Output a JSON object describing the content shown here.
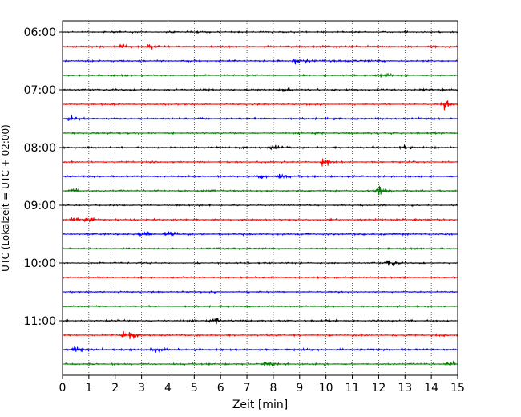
{
  "chart_data": {
    "type": "line",
    "title": "",
    "xlabel": "Zeit  [min]",
    "ylabel": "UTC (Lokalzeit = UTC + 02:00)",
    "xlim": [
      0,
      15
    ],
    "x_ticks": [
      "0",
      "1",
      "2",
      "3",
      "4",
      "5",
      "6",
      "7",
      "8",
      "9",
      "10",
      "11",
      "12",
      "13",
      "14",
      "15"
    ],
    "y_ticks": [
      "06:00",
      "07:00",
      "08:00",
      "09:00",
      "10:00",
      "11:00"
    ],
    "grid": "vertical dotted lines at each minute",
    "trace_interval_minutes": 15,
    "colors": [
      "#000000",
      "#ff0000",
      "#0000ff",
      "#008000"
    ],
    "traces": [
      {
        "start": "06:00",
        "color": "#000000",
        "amplitude": 0.1,
        "events": []
      },
      {
        "start": "06:15",
        "color": "#ff0000",
        "amplitude": 0.13,
        "events": [
          {
            "t": 2.3,
            "amp": 0.35
          },
          {
            "t": 3.3,
            "amp": 0.35
          }
        ]
      },
      {
        "start": "06:30",
        "color": "#0000ff",
        "amplitude": 0.12,
        "events": [
          {
            "t": 8.9,
            "amp": 0.6
          }
        ]
      },
      {
        "start": "06:45",
        "color": "#008000",
        "amplitude": 0.1,
        "events": [
          {
            "t": 12.1,
            "amp": 0.4
          }
        ]
      },
      {
        "start": "07:00",
        "color": "#000000",
        "amplitude": 0.12,
        "events": [
          {
            "t": 8.4,
            "amp": 0.25
          }
        ]
      },
      {
        "start": "07:15",
        "color": "#ff0000",
        "amplitude": 0.1,
        "events": [
          {
            "t": 14.5,
            "amp": 0.7
          }
        ]
      },
      {
        "start": "07:30",
        "color": "#0000ff",
        "amplitude": 0.12,
        "events": [
          {
            "t": 0.3,
            "amp": 0.65
          }
        ]
      },
      {
        "start": "07:45",
        "color": "#008000",
        "amplitude": 0.12,
        "events": []
      },
      {
        "start": "08:00",
        "color": "#000000",
        "amplitude": 0.12,
        "events": [
          {
            "t": 8.0,
            "amp": 0.35
          },
          {
            "t": 13.0,
            "amp": 0.3
          }
        ]
      },
      {
        "start": "08:15",
        "color": "#ff0000",
        "amplitude": 0.1,
        "events": [
          {
            "t": 9.9,
            "amp": 0.6
          }
        ]
      },
      {
        "start": "08:30",
        "color": "#0000ff",
        "amplitude": 0.12,
        "events": [
          {
            "t": 7.5,
            "amp": 0.4
          },
          {
            "t": 8.2,
            "amp": 0.3
          }
        ]
      },
      {
        "start": "08:45",
        "color": "#008000",
        "amplitude": 0.12,
        "events": [
          {
            "t": 0.3,
            "amp": 0.35
          },
          {
            "t": 12.0,
            "amp": 0.7
          }
        ]
      },
      {
        "start": "09:00",
        "color": "#000000",
        "amplitude": 0.1,
        "events": []
      },
      {
        "start": "09:15",
        "color": "#ff0000",
        "amplitude": 0.12,
        "events": [
          {
            "t": 0.4,
            "amp": 0.55
          },
          {
            "t": 0.9,
            "amp": 0.4
          }
        ]
      },
      {
        "start": "09:30",
        "color": "#0000ff",
        "amplitude": 0.12,
        "events": [
          {
            "t": 3.0,
            "amp": 0.4
          },
          {
            "t": 4.0,
            "amp": 0.35
          }
        ]
      },
      {
        "start": "09:45",
        "color": "#008000",
        "amplitude": 0.1,
        "events": []
      },
      {
        "start": "10:00",
        "color": "#000000",
        "amplitude": 0.1,
        "events": [
          {
            "t": 12.4,
            "amp": 0.65
          }
        ]
      },
      {
        "start": "10:15",
        "color": "#ff0000",
        "amplitude": 0.1,
        "events": []
      },
      {
        "start": "10:30",
        "color": "#0000ff",
        "amplitude": 0.1,
        "events": []
      },
      {
        "start": "10:45",
        "color": "#008000",
        "amplitude": 0.1,
        "events": []
      },
      {
        "start": "11:00",
        "color": "#000000",
        "amplitude": 0.12,
        "events": [
          {
            "t": 5.8,
            "amp": 0.3
          }
        ]
      },
      {
        "start": "11:15",
        "color": "#ff0000",
        "amplitude": 0.12,
        "events": [
          {
            "t": 2.4,
            "amp": 0.85
          }
        ]
      },
      {
        "start": "11:30",
        "color": "#0000ff",
        "amplitude": 0.14,
        "events": [
          {
            "t": 0.5,
            "amp": 0.5
          },
          {
            "t": 3.5,
            "amp": 0.3
          }
        ]
      },
      {
        "start": "11:45",
        "color": "#008000",
        "amplitude": 0.12,
        "events": [
          {
            "t": 7.7,
            "amp": 0.45
          },
          {
            "t": 14.7,
            "amp": 0.35
          }
        ]
      }
    ]
  }
}
